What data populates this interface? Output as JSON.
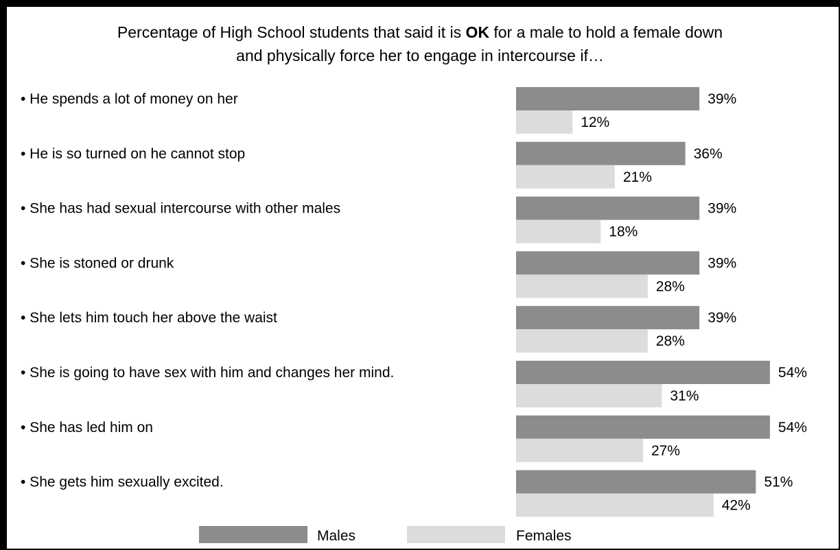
{
  "chart_data": {
    "type": "bar",
    "orientation": "horizontal",
    "title_parts": {
      "before": "Percentage of High School students that said it is ",
      "bold": "OK",
      "after": " for a male to hold a female down",
      "line2": "and physically force her to engage in intercourse if…"
    },
    "categories": [
      "• He spends a lot of money on her",
      "• He is so turned on he cannot stop",
      "• She has had sexual intercourse with other males",
      "• She is stoned or drunk",
      "• She lets him touch her above the waist",
      "• She is going to have sex with him and changes her mind.",
      "• She has led him on",
      "• She gets him sexually excited."
    ],
    "series": [
      {
        "name": "Males",
        "color": "#8c8c8c",
        "values": [
          39,
          36,
          39,
          39,
          39,
          54,
          54,
          51
        ],
        "labels": [
          "39%",
          "36%",
          "39%",
          "39%",
          "39%",
          "54%",
          "54%",
          "51%"
        ]
      },
      {
        "name": "Females",
        "color": "#dcdcdc",
        "values": [
          12,
          21,
          18,
          28,
          28,
          31,
          27,
          42
        ],
        "labels": [
          "12%",
          "21%",
          "18%",
          "28%",
          "28%",
          "31%",
          "27%",
          "42%"
        ]
      }
    ],
    "legend_position": "bottom"
  }
}
